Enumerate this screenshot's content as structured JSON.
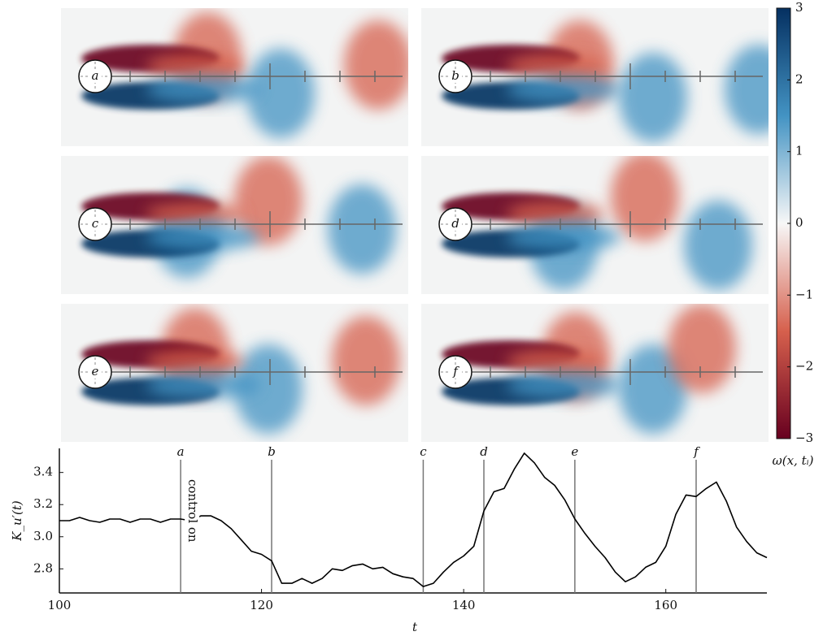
{
  "chart_data": [
    {
      "type": "field",
      "panels": [
        "a",
        "b",
        "c",
        "d",
        "e",
        "f"
      ],
      "colorbar": {
        "label": "ω(x, tᵢ)",
        "ylim": [
          -3,
          3
        ],
        "yticks": [
          {
            "value": -3,
            "label": "−3"
          },
          {
            "value": -2,
            "label": "−2"
          },
          {
            "value": -1,
            "label": "−1"
          },
          0,
          1,
          2,
          3
        ],
        "colors": [
          "#67001f",
          "#d6604d",
          "#f7f7f7",
          "#4393c3",
          "#053061"
        ]
      }
    },
    {
      "type": "line",
      "ylabel": "K_u′(t)",
      "xlabel": "t",
      "xlim": [
        100,
        170
      ],
      "ylim": [
        2.65,
        3.55
      ],
      "xticks": [
        100,
        120,
        140,
        160
      ],
      "yticks": [
        2.8,
        {
          "value": 3,
          "label": "3.0"
        },
        3.2,
        3.4
      ],
      "color": "#000000",
      "markers": [
        {
          "x": 112,
          "label": "a"
        },
        {
          "x": 121,
          "label": "b"
        },
        {
          "x": 136,
          "label": "c"
        },
        {
          "x": 142,
          "label": "d"
        },
        {
          "x": 151,
          "label": "e"
        },
        {
          "x": 163,
          "label": "f"
        }
      ],
      "annotation": "control on",
      "x": [
        100,
        101,
        102,
        103,
        104,
        105,
        106,
        107,
        108,
        109,
        110,
        111,
        112,
        113,
        114,
        115,
        116,
        117,
        118,
        119,
        120,
        121,
        122,
        123,
        124,
        125,
        126,
        127,
        128,
        129,
        130,
        131,
        132,
        133,
        134,
        135,
        136,
        137,
        138,
        139,
        140,
        141,
        142,
        143,
        144,
        145,
        146,
        147,
        148,
        149,
        150,
        151,
        152,
        153,
        154,
        155,
        156,
        157,
        158,
        159,
        160,
        161,
        162,
        163,
        164,
        165,
        166,
        167,
        168,
        169,
        170
      ],
      "values": [
        3.1,
        3.1,
        3.12,
        3.1,
        3.09,
        3.11,
        3.11,
        3.09,
        3.11,
        3.11,
        3.09,
        3.11,
        3.11,
        3.1,
        3.13,
        3.13,
        3.1,
        3.05,
        2.98,
        2.91,
        2.89,
        2.85,
        2.71,
        2.71,
        2.74,
        2.71,
        2.74,
        2.8,
        2.79,
        2.82,
        2.83,
        2.8,
        2.81,
        2.77,
        2.75,
        2.74,
        2.69,
        2.71,
        2.78,
        2.84,
        2.88,
        2.94,
        3.16,
        3.28,
        3.3,
        3.42,
        3.52,
        3.46,
        3.37,
        3.32,
        3.23,
        3.11,
        3.02,
        2.94,
        2.87,
        2.78,
        2.72,
        2.75,
        2.81,
        2.84,
        2.94,
        3.14,
        3.26,
        3.25,
        3.3,
        3.34,
        3.22,
        3.06,
        2.97,
        2.9,
        2.87
      ]
    }
  ]
}
